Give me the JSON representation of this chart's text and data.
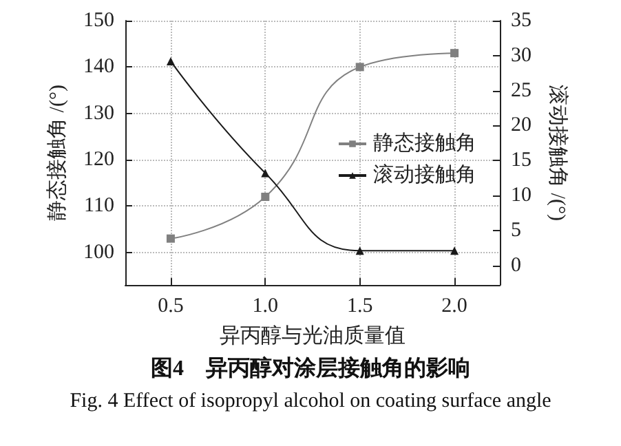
{
  "chart_data": {
    "type": "line",
    "xlabel": "异丙醇与光油质量值",
    "ylabel": "静态接触角 /(°)",
    "y2label": "滚动接触角 /(°)",
    "annotations": [
      "图4　异丙醇对涂层接触角的影响",
      "Fig. 4 Effect of isopropyl alcohol on coating surface angle"
    ],
    "x": [
      0.5,
      1.0,
      1.5,
      2.0
    ],
    "series": [
      {
        "name": "静态接触角",
        "color": "#808080",
        "values": [
          103,
          112,
          140,
          143
        ],
        "marker": "square"
      },
      {
        "name": "滚动接触角",
        "color": "#1a1a1a",
        "values": [
          29.2,
          13.2,
          2.1,
          2.1
        ],
        "marker": "triangle",
        "axis": "y2"
      }
    ],
    "xlim": [
      0.26,
      2.24
    ],
    "xticks": [
      {
        "value": 0.5,
        "label": "0.5"
      },
      {
        "value": 1.0,
        "label": "1.0"
      },
      {
        "value": 1.5,
        "label": "1.5"
      },
      {
        "value": 2.0,
        "label": "2.0"
      }
    ],
    "ylim": [
      93,
      150
    ],
    "yticks": [
      100,
      110,
      120,
      130,
      140,
      150
    ],
    "y2lim": [
      -2.8,
      35
    ],
    "y2ticks": [
      0,
      5,
      10,
      15,
      20,
      25,
      30,
      35
    ],
    "grid": true,
    "legend": "right",
    "line_style": "solid"
  }
}
